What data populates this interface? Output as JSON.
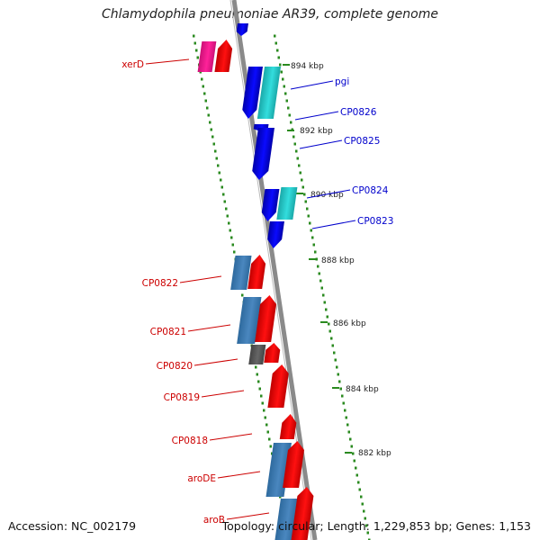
{
  "title": "Chlamydophila pneumoniae AR39, complete genome",
  "accession": "Accession: NC_002179",
  "topology": "Topology: circular; Length: 1,229,853 bp; Genes: 1,153",
  "colors": {
    "forward_red": "#ff1010",
    "reverse_blue": "#0a0aff",
    "steel_blue": "#4a87bf",
    "cyan": "#33dddd",
    "magenta": "#ff2299",
    "gray": "#666666",
    "backbone": "#8a8a8a",
    "tick_green": "#2a8a1f",
    "red_label": "#cc0000",
    "blue_label": "#0000cc"
  },
  "scale_labels": [
    "894 kbp",
    "892 kbp",
    "890 kbp",
    "888 kbp",
    "886 kbp",
    "884 kbp",
    "882 kbp"
  ],
  "gene_labels": [
    {
      "text": "xerD",
      "side": "left",
      "color": "red"
    },
    {
      "text": "pgi",
      "side": "right",
      "color": "blue"
    },
    {
      "text": "CP0826",
      "side": "right",
      "color": "blue"
    },
    {
      "text": "CP0825",
      "side": "right",
      "color": "blue"
    },
    {
      "text": "CP0824",
      "side": "right",
      "color": "blue"
    },
    {
      "text": "CP0823",
      "side": "right",
      "color": "blue"
    },
    {
      "text": "CP0822",
      "side": "left",
      "color": "red"
    },
    {
      "text": "CP0821",
      "side": "left",
      "color": "red"
    },
    {
      "text": "CP0820",
      "side": "left",
      "color": "red"
    },
    {
      "text": "CP0819",
      "side": "left",
      "color": "red"
    },
    {
      "text": "CP0818",
      "side": "left",
      "color": "red"
    },
    {
      "text": "aroDE",
      "side": "left",
      "color": "red"
    },
    {
      "text": "aroB",
      "side": "left",
      "color": "red"
    }
  ]
}
